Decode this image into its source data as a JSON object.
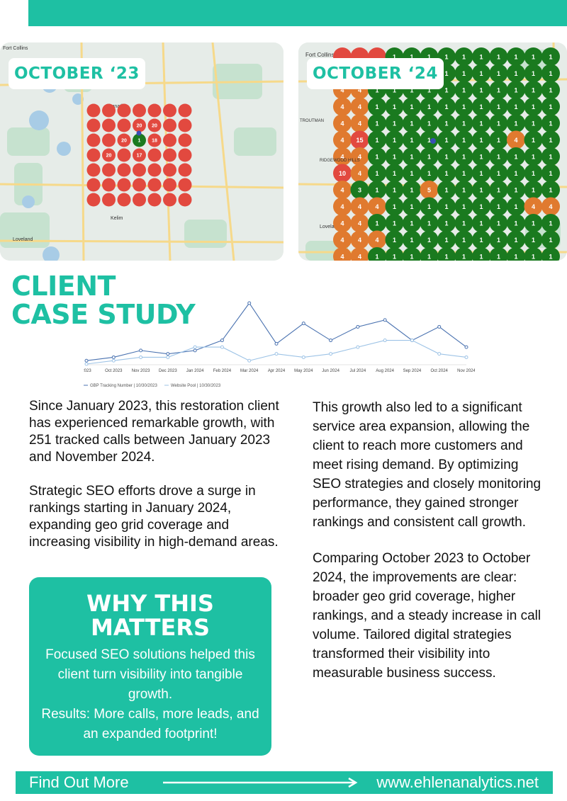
{
  "maps": {
    "before": {
      "label": "OCTOBER ‘23",
      "place_labels": [
        "Fort Collins",
        "Timnath",
        "Kelim",
        "Loveland"
      ],
      "grid_rank_values": [
        "20",
        "20",
        "20",
        "18",
        "20",
        "17"
      ],
      "pin_rank": "1"
    },
    "after": {
      "label": "OCTOBER ‘24",
      "place_labels": [
        "Fort Collins",
        "TROUTMAN",
        "RIDGEWOOD HILLS",
        "Lovela"
      ],
      "highlight_ranks": [
        "15",
        "4",
        "3",
        "5",
        "4",
        "4",
        "10"
      ]
    }
  },
  "title": {
    "line1": "CLIENT",
    "line2": "CASE STUDY"
  },
  "chart_data": {
    "type": "line",
    "categories": [
      "2023",
      "Oct 2023",
      "Nov 2023",
      "Dec 2023",
      "Jan 2024",
      "Feb 2024",
      "Mar 2024",
      "Apr 2024",
      "May 2024",
      "Jun 2024",
      "Jul 2024",
      "Aug 2024",
      "Sep 2024",
      "Oct 2024",
      "Nov 2024"
    ],
    "series": [
      {
        "name": "GBP Tracking Number | 10/30/2023",
        "color": "#4a72b0",
        "values": [
          1,
          2,
          4,
          3,
          4,
          7,
          18,
          6,
          12,
          7,
          11,
          13,
          7,
          11,
          5
        ]
      },
      {
        "name": "Website Pool | 10/30/2023",
        "color": "#9dc3e6",
        "values": [
          0,
          1,
          2,
          2,
          5,
          5,
          1,
          3,
          2,
          3,
          5,
          7,
          7,
          3,
          2
        ]
      }
    ],
    "xlabel": "",
    "ylabel": "",
    "legend_position": "bottom",
    "grid": false
  },
  "body": {
    "left_p1": "Since January 2023, this restoration client has experienced remarkable growth, with 251 tracked calls between January 2023 and November 2024.",
    "left_p2": "Strategic SEO efforts drove a surge in rankings starting in January 2024, expanding geo grid coverage and increasing visibility in high-demand areas.",
    "right_p1": "This growth also led to a significant service area expansion, allowing the client to reach more customers and meet rising demand. By optimizing SEO strategies and closely monitoring performance, they gained stronger rankings and consistent call growth.",
    "right_p2": "Comparing October 2023 to October 2024, the improvements are clear: broader geo grid coverage, higher rankings, and a steady increase in call volume. Tailored digital strategies transformed their visibility into measurable business success."
  },
  "why": {
    "title_line1": "WHY THIS",
    "title_line2": "MATTERS",
    "body_line1": "Focused SEO solutions helped this client turn visibility into tangible growth.",
    "body_line2": "Results: More calls, more leads, and an expanded footprint!"
  },
  "footer": {
    "cta": "Find Out More",
    "url": "www.ehlenanalytics.net"
  },
  "colors": {
    "brand": "#1ec0a3",
    "rank_low": "#e2493f",
    "rank_mid": "#e07a2f",
    "rank_top": "#1a7a1f"
  }
}
